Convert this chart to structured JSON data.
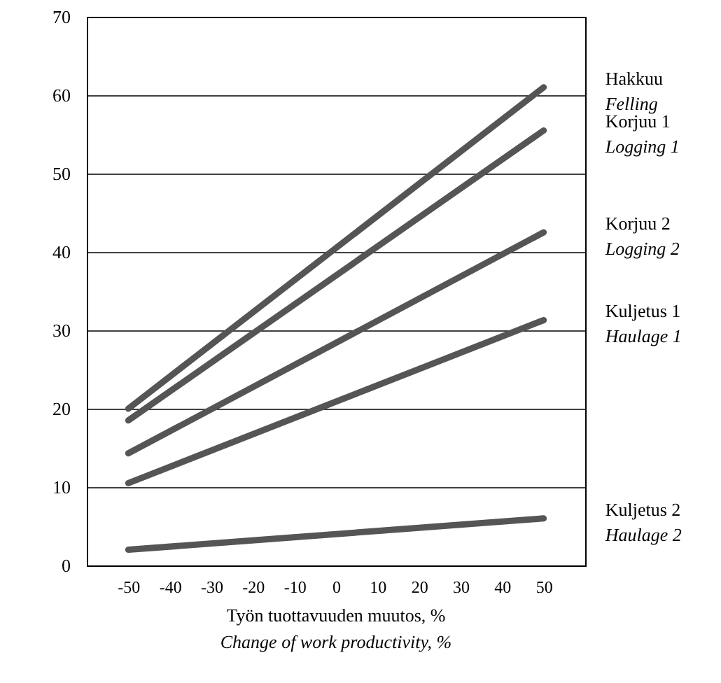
{
  "chart_data": {
    "type": "line",
    "xlabel": "Työn tuottavuuden muutos, %\nChange of work productivity, %",
    "x": [
      -50,
      50
    ],
    "xlim": [
      -60,
      60
    ],
    "xticks": [
      -50,
      -40,
      -30,
      -20,
      -10,
      0,
      10,
      20,
      30,
      40,
      50
    ],
    "ylim": [
      0,
      70
    ],
    "yticks": [
      0,
      10,
      20,
      30,
      40,
      50,
      60,
      70
    ],
    "grid": "y",
    "marker": "none",
    "line_style": "solid",
    "series": [
      {
        "name": "Hakkuu\nFelling",
        "color": "#555555",
        "values": [
          20,
          61
        ]
      },
      {
        "name": "Korjuu 1\nLogging 1",
        "color": "#555555",
        "values": [
          18.5,
          55.5
        ]
      },
      {
        "name": "Korjuu 2\nLogging 2",
        "color": "#555555",
        "values": [
          14.3,
          42.5
        ]
      },
      {
        "name": "Kuljetus 1\nHaulage 1",
        "color": "#555555",
        "values": [
          10.5,
          31.3
        ]
      },
      {
        "name": "Kuljetus 2\nHaulage 2",
        "color": "#555555",
        "values": [
          2,
          6
        ]
      }
    ]
  }
}
